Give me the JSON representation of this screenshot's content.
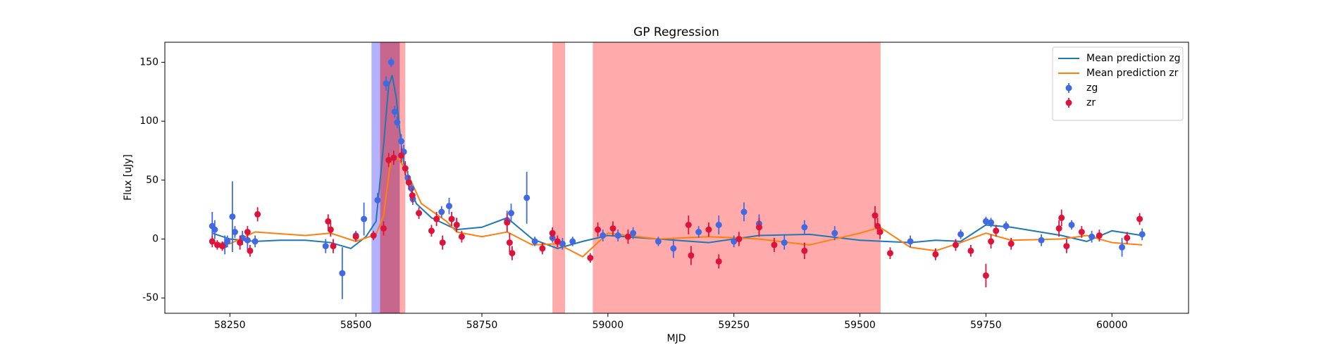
{
  "chart_data": {
    "type": "gp-regression",
    "title": "GP Regression",
    "x_label": "MJD",
    "y_label": "Flux [uJy]",
    "xlim": [
      58121,
      60152
    ],
    "ylim": [
      -63,
      167
    ],
    "xticks": [
      58250,
      58500,
      58750,
      59000,
      59250,
      59500,
      59750,
      60000
    ],
    "yticks": [
      -50,
      0,
      50,
      100,
      150
    ],
    "legend": "upper right",
    "spans": [
      {
        "start": 58531,
        "end": 58548,
        "color": "#0000ff",
        "opacity": 0.3
      },
      {
        "start": 58548,
        "end": 58598,
        "color": "#ff0000",
        "opacity": 0.33
      },
      {
        "start": 58548,
        "end": 58587,
        "color": "#a33a7a",
        "opacity": 0.6
      },
      {
        "start": 58890,
        "end": 58915,
        "color": "#ff0000",
        "opacity": 0.33
      },
      {
        "start": 58970,
        "end": 59541,
        "color": "#ff0000",
        "opacity": 0.33
      }
    ],
    "series": [
      {
        "name": "Mean prediction zg",
        "kind": "line",
        "color": "#1f77b4",
        "x": [
          58215,
          58250,
          58300,
          58350,
          58400,
          58450,
          58490,
          58520,
          58540,
          58555,
          58565,
          58572,
          58580,
          58590,
          58600,
          58620,
          58650,
          58700,
          58750,
          58800,
          58850,
          58900,
          58950,
          59000,
          59100,
          59200,
          59300,
          59400,
          59500,
          59600,
          59650,
          59700,
          59750,
          59800,
          59900,
          59950,
          60000,
          60060
        ],
        "values": [
          5,
          0,
          -2,
          -1,
          -1,
          -3,
          -8,
          2,
          15,
          80,
          130,
          139,
          120,
          80,
          50,
          30,
          18,
          8,
          10,
          18,
          0,
          -8,
          -2,
          3,
          0,
          -3,
          3,
          4,
          -1,
          -3,
          -1,
          -2,
          12,
          10,
          3,
          -2,
          7,
          3
        ]
      },
      {
        "name": "Mean prediction zr",
        "kind": "line",
        "color": "#ff7f0e",
        "x": [
          58215,
          58250,
          58300,
          58400,
          58450,
          58500,
          58540,
          58555,
          58570,
          58585,
          58600,
          58630,
          58680,
          58700,
          58750,
          58800,
          58850,
          58900,
          58950,
          59000,
          59100,
          59200,
          59300,
          59400,
          59500,
          59540,
          59600,
          59650,
          59700,
          59750,
          59800,
          59900,
          59950,
          60000,
          60060
        ],
        "values": [
          -3,
          -4,
          6,
          3,
          5,
          -2,
          4,
          20,
          70,
          68,
          58,
          30,
          15,
          6,
          2,
          6,
          -5,
          -4,
          -15,
          5,
          0,
          2,
          0,
          -5,
          5,
          10,
          -7,
          -10,
          -3,
          5,
          -1,
          0,
          3,
          -3,
          -5
        ]
      },
      {
        "name": "zg",
        "kind": "errorbar",
        "color": "#4169e1",
        "x": [
          58215,
          58220,
          58240,
          58245,
          58255,
          58260,
          58275,
          58285,
          58300,
          58440,
          58473,
          58500,
          58516,
          58543,
          58560,
          58570,
          58577,
          58582,
          58590,
          58595,
          58603,
          58610,
          58613,
          58670,
          58685,
          58700,
          58800,
          58808,
          58839,
          58855,
          58890,
          58910,
          58930,
          58990,
          59020,
          59050,
          59100,
          59130,
          59180,
          59220,
          59250,
          59270,
          59300,
          59350,
          59390,
          59450,
          59600,
          59700,
          59750,
          59760,
          59790,
          59860,
          59920,
          59960,
          60020,
          60060
        ],
        "values": [
          11,
          8,
          -5,
          -2,
          19,
          6,
          1,
          -1,
          -2,
          -6,
          -29,
          3,
          17,
          33,
          132,
          150,
          108,
          99,
          83,
          74,
          52,
          43,
          34,
          23,
          28,
          12,
          16,
          22,
          35,
          -2,
          1,
          -4,
          -2,
          3,
          3,
          5,
          -2,
          -8,
          6,
          12,
          -2,
          23,
          13,
          -3,
          10,
          5,
          -2,
          4,
          15,
          14,
          11,
          -1,
          12,
          2,
          -7,
          4
        ],
        "errors": [
          12,
          8,
          8,
          5,
          30,
          5,
          6,
          8,
          5,
          6,
          22,
          4,
          14,
          6,
          6,
          4,
          5,
          5,
          6,
          6,
          6,
          6,
          5,
          5,
          7,
          6,
          8,
          8,
          22,
          4,
          4,
          5,
          4,
          5,
          5,
          5,
          4,
          8,
          5,
          8,
          5,
          8,
          8,
          6,
          6,
          6,
          5,
          4,
          4,
          4,
          4,
          5,
          4,
          5,
          8,
          5
        ]
      },
      {
        "name": "zr",
        "kind": "errorbar",
        "color": "#dc143c",
        "x": [
          58215,
          58225,
          58235,
          58270,
          58285,
          58290,
          58305,
          58445,
          58450,
          58455,
          58500,
          58535,
          58555,
          58565,
          58575,
          58590,
          58598,
          58605,
          58612,
          58625,
          58650,
          58660,
          58672,
          58690,
          58700,
          58710,
          58800,
          58805,
          58810,
          58870,
          58890,
          58900,
          58965,
          58980,
          59010,
          59040,
          59160,
          59165,
          59200,
          59220,
          59260,
          59300,
          59330,
          59390,
          59530,
          59535,
          59540,
          59560,
          59650,
          59690,
          59720,
          59750,
          59760,
          59770,
          59800,
          59895,
          59900,
          59910,
          59940,
          59975,
          60030,
          60055
        ],
        "values": [
          -2,
          -5,
          -6,
          -3,
          6,
          -10,
          21,
          15,
          8,
          -6,
          2,
          3,
          9,
          67,
          69,
          71,
          60,
          48,
          37,
          22,
          7,
          17,
          -3,
          17,
          12,
          2,
          14,
          -3,
          -12,
          -8,
          5,
          -2,
          -16,
          8,
          9,
          2,
          12,
          -14,
          8,
          -19,
          0,
          10,
          -5,
          -10,
          20,
          11,
          6,
          -12,
          -13,
          -5,
          -10,
          -31,
          -2,
          7,
          -4,
          9,
          18,
          -6,
          6,
          3,
          1,
          17
        ],
        "errors": [
          5,
          4,
          4,
          6,
          5,
          5,
          6,
          6,
          6,
          6,
          4,
          4,
          6,
          6,
          6,
          6,
          6,
          6,
          6,
          5,
          5,
          6,
          6,
          6,
          6,
          5,
          8,
          8,
          6,
          5,
          5,
          5,
          4,
          6,
          6,
          6,
          8,
          8,
          6,
          6,
          6,
          8,
          6,
          7,
          8,
          7,
          6,
          5,
          5,
          5,
          5,
          10,
          6,
          5,
          5,
          7,
          7,
          6,
          5,
          5,
          5,
          5
        ]
      }
    ]
  }
}
